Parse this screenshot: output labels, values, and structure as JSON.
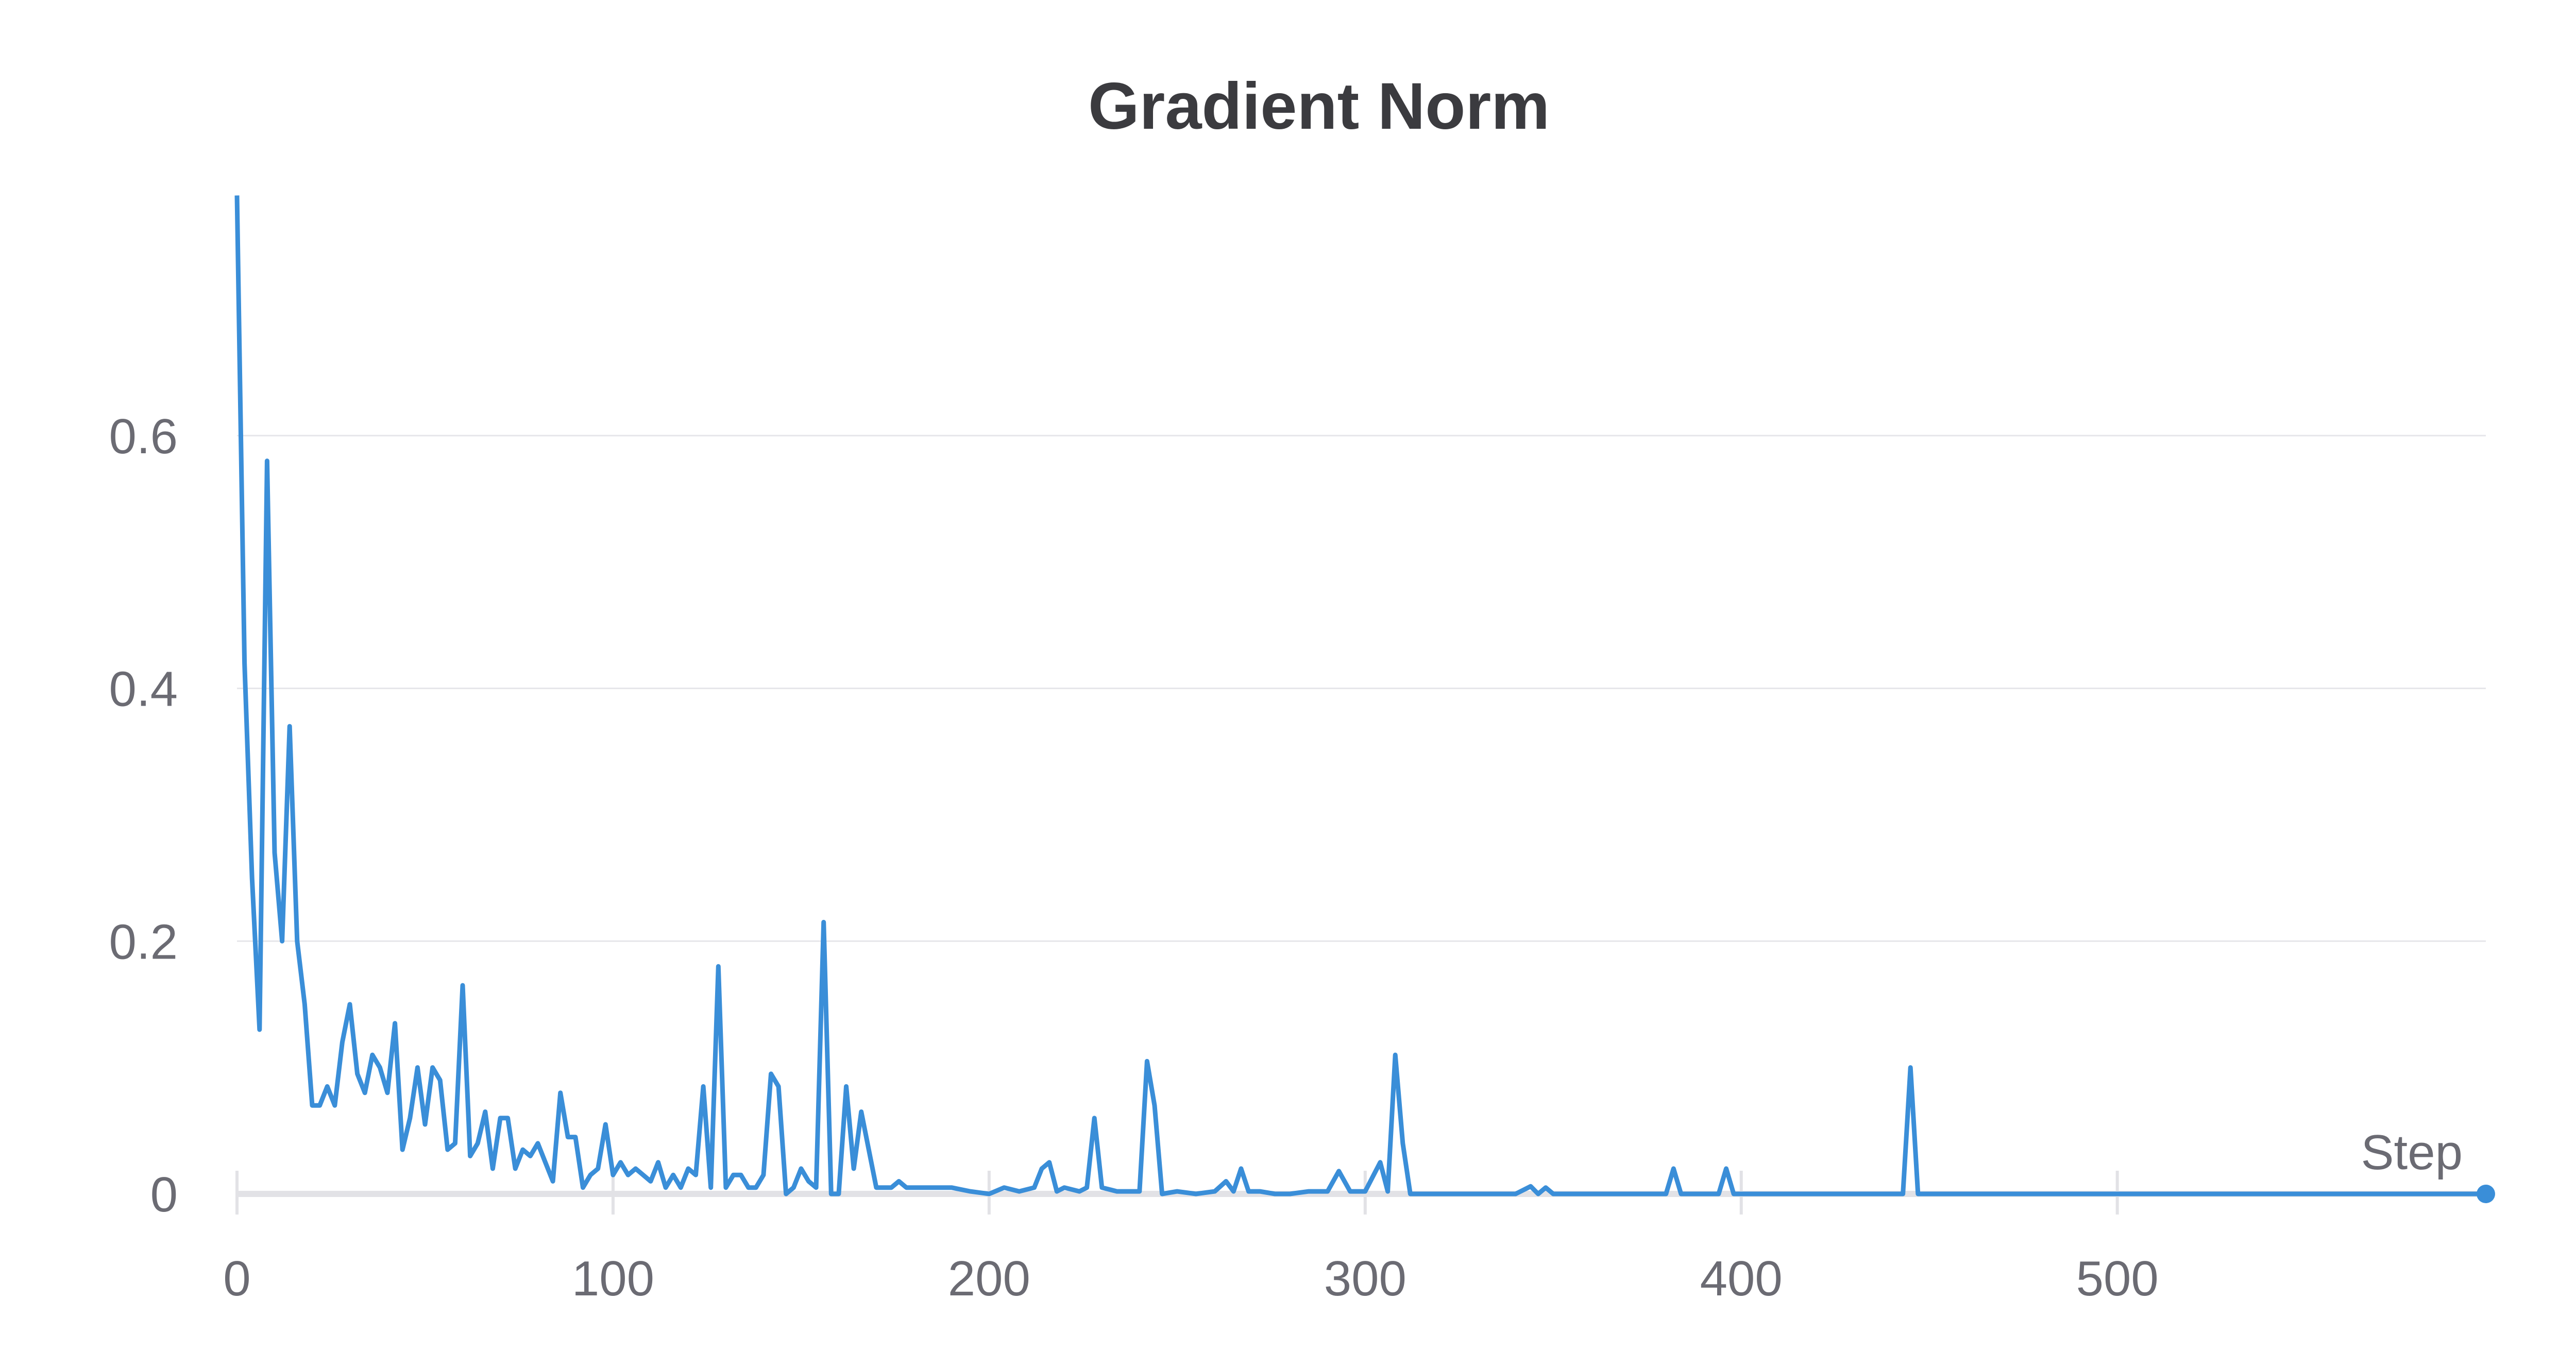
{
  "chart_data": {
    "type": "line",
    "title": "Gradient Norm",
    "xlabel": "Step",
    "ylabel": "",
    "xlim": [
      0,
      598
    ],
    "ylim": [
      0,
      0.8
    ],
    "x_ticks": [
      0,
      100,
      200,
      300,
      400,
      500
    ],
    "x_tick_labels": [
      "0",
      "100",
      "200",
      "300",
      "400",
      "500"
    ],
    "y_ticks": [
      0,
      0.2,
      0.4,
      0.6
    ],
    "y_tick_labels": [
      "0",
      "0.2",
      "0.4",
      "0.6"
    ],
    "grid": true,
    "line_color": "#3a8ed8",
    "series": [
      {
        "x": [
          0,
          2,
          4,
          6,
          8,
          10,
          12,
          14,
          16,
          18,
          20,
          22,
          24,
          26,
          28,
          30,
          32,
          34,
          36,
          38,
          40,
          42,
          44,
          46,
          48,
          50,
          52,
          54,
          56,
          58,
          60,
          62,
          64,
          66,
          68,
          70,
          72,
          74,
          76,
          78,
          80,
          82,
          84,
          86,
          88,
          90,
          92,
          94,
          96,
          98,
          100,
          102,
          104,
          106,
          108,
          110,
          112,
          114,
          116,
          118,
          120,
          122,
          124,
          126,
          128,
          130,
          132,
          134,
          136,
          138,
          140,
          142,
          144,
          146,
          148,
          150,
          152,
          154,
          156,
          158,
          160,
          162,
          164,
          166,
          168,
          170,
          172,
          174,
          176,
          178,
          180,
          185,
          190,
          195,
          200,
          204,
          208,
          212,
          214,
          216,
          218,
          220,
          224,
          226,
          228,
          230,
          234,
          238,
          240,
          242,
          244,
          246,
          250,
          255,
          260,
          263,
          265,
          267,
          269,
          272,
          276,
          280,
          285,
          290,
          293,
          296,
          300,
          304,
          306,
          308,
          310,
          312,
          320,
          330,
          340,
          344,
          346,
          348,
          350,
          360,
          370,
          380,
          382,
          384,
          390,
          394,
          396,
          398,
          400,
          410,
          420,
          430,
          440,
          443,
          445,
          447,
          449,
          460,
          480,
          500,
          520,
          540,
          560,
          580,
          598
        ],
        "y": [
          0.79,
          0.42,
          0.25,
          0.13,
          0.58,
          0.27,
          0.2,
          0.37,
          0.2,
          0.15,
          0.07,
          0.07,
          0.085,
          0.07,
          0.12,
          0.15,
          0.095,
          0.08,
          0.11,
          0.1,
          0.08,
          0.135,
          0.035,
          0.06,
          0.1,
          0.055,
          0.1,
          0.09,
          0.035,
          0.04,
          0.165,
          0.03,
          0.04,
          0.065,
          0.02,
          0.06,
          0.06,
          0.02,
          0.035,
          0.03,
          0.04,
          0.025,
          0.01,
          0.08,
          0.045,
          0.045,
          0.005,
          0.015,
          0.02,
          0.055,
          0.015,
          0.025,
          0.015,
          0.02,
          0.015,
          0.01,
          0.025,
          0.005,
          0.015,
          0.005,
          0.02,
          0.015,
          0.085,
          0.005,
          0.18,
          0.005,
          0.015,
          0.015,
          0.005,
          0.005,
          0.015,
          0.095,
          0.085,
          0.0,
          0.005,
          0.02,
          0.01,
          0.005,
          0.215,
          0.0,
          0.0,
          0.085,
          0.02,
          0.065,
          0.035,
          0.005,
          0.005,
          0.005,
          0.01,
          0.005,
          0.005,
          0.005,
          0.005,
          0.002,
          0.0,
          0.005,
          0.002,
          0.005,
          0.02,
          0.025,
          0.002,
          0.005,
          0.002,
          0.005,
          0.06,
          0.005,
          0.002,
          0.002,
          0.002,
          0.105,
          0.07,
          0.0,
          0.002,
          0.0,
          0.002,
          0.01,
          0.002,
          0.02,
          0.002,
          0.002,
          0.0,
          0.0,
          0.002,
          0.002,
          0.018,
          0.002,
          0.002,
          0.025,
          0.002,
          0.11,
          0.04,
          0.0,
          0.0,
          0.0,
          0.0,
          0.006,
          0.0,
          0.005,
          0.0,
          0.0,
          0.0,
          0.0,
          0.02,
          0.0,
          0.0,
          0.0,
          0.02,
          0.0,
          0.0,
          0.0,
          0.0,
          0.0,
          0.0,
          0.0,
          0.1,
          0.0,
          0.0,
          0.0,
          0.0,
          0.0,
          0.0,
          0.0,
          0.0,
          0.0,
          0.0
        ]
      }
    ]
  }
}
